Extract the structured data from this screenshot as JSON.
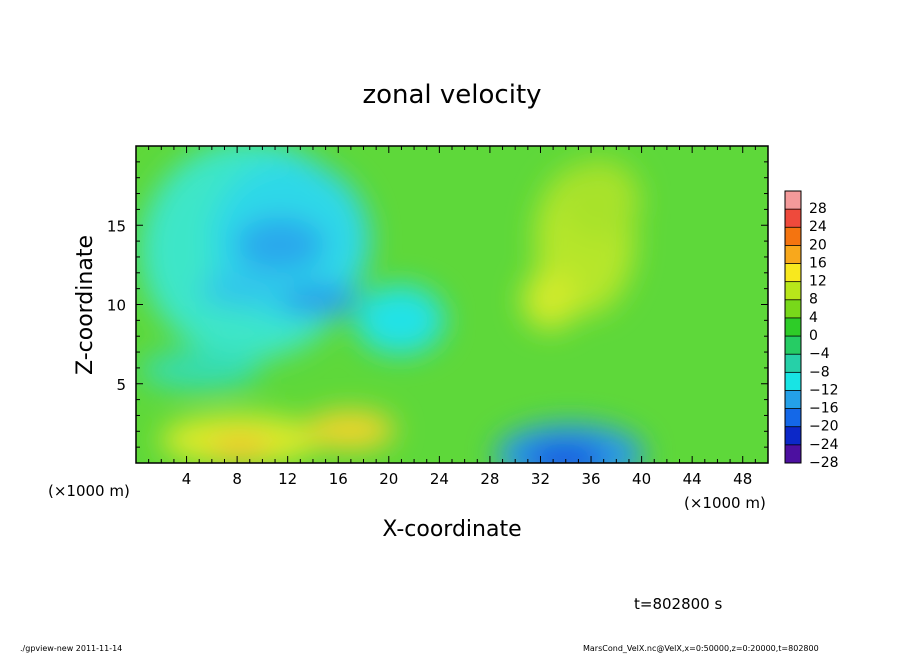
{
  "chart_data": {
    "type": "heatmap",
    "title": "zonal velocity",
    "xlabel": "X-coordinate",
    "ylabel": "Z-coordinate",
    "x_unit_label": "(×1000 m)",
    "x_ticks": [
      4,
      8,
      12,
      16,
      20,
      24,
      28,
      32,
      36,
      40,
      44,
      48
    ],
    "y_ticks": [
      5,
      10,
      15
    ],
    "xlim": [
      0,
      50
    ],
    "ylim": [
      0,
      20
    ],
    "colorbar_levels": [
      28,
      24,
      20,
      16,
      12,
      8,
      4,
      0,
      -4,
      -8,
      -12,
      -16,
      -20,
      -24,
      -28
    ],
    "colorbar_colors": [
      "#f49a9a",
      "#ee4a3c",
      "#f47410",
      "#f8a81c",
      "#f8e81e",
      "#b8e61a",
      "#78d81a",
      "#2ecc28",
      "#26cc64",
      "#26d0a8",
      "#18e4e4",
      "#24a0e8",
      "#1468e8",
      "#0c28c8",
      "#4c10a0"
    ],
    "time_label": "t=802800 s",
    "features": [
      {
        "x": 13,
        "z": 13.5,
        "value": -12
      },
      {
        "x": 15,
        "z": 10.3,
        "value": -12
      },
      {
        "x": 10,
        "z": 1.2,
        "value": 10
      },
      {
        "x": 18,
        "z": 1.8,
        "value": 12
      },
      {
        "x": 34,
        "z": 0.8,
        "value": -20
      },
      {
        "x": 32,
        "z": 10.5,
        "value": 8
      },
      {
        "x": 36,
        "z": 15,
        "value": 6
      }
    ]
  },
  "footer": {
    "left": "./gpview-new  2011-11-14",
    "right": "MarsCond_VelX.nc@VelX,x=0:50000,z=0:20000,t=802800"
  }
}
